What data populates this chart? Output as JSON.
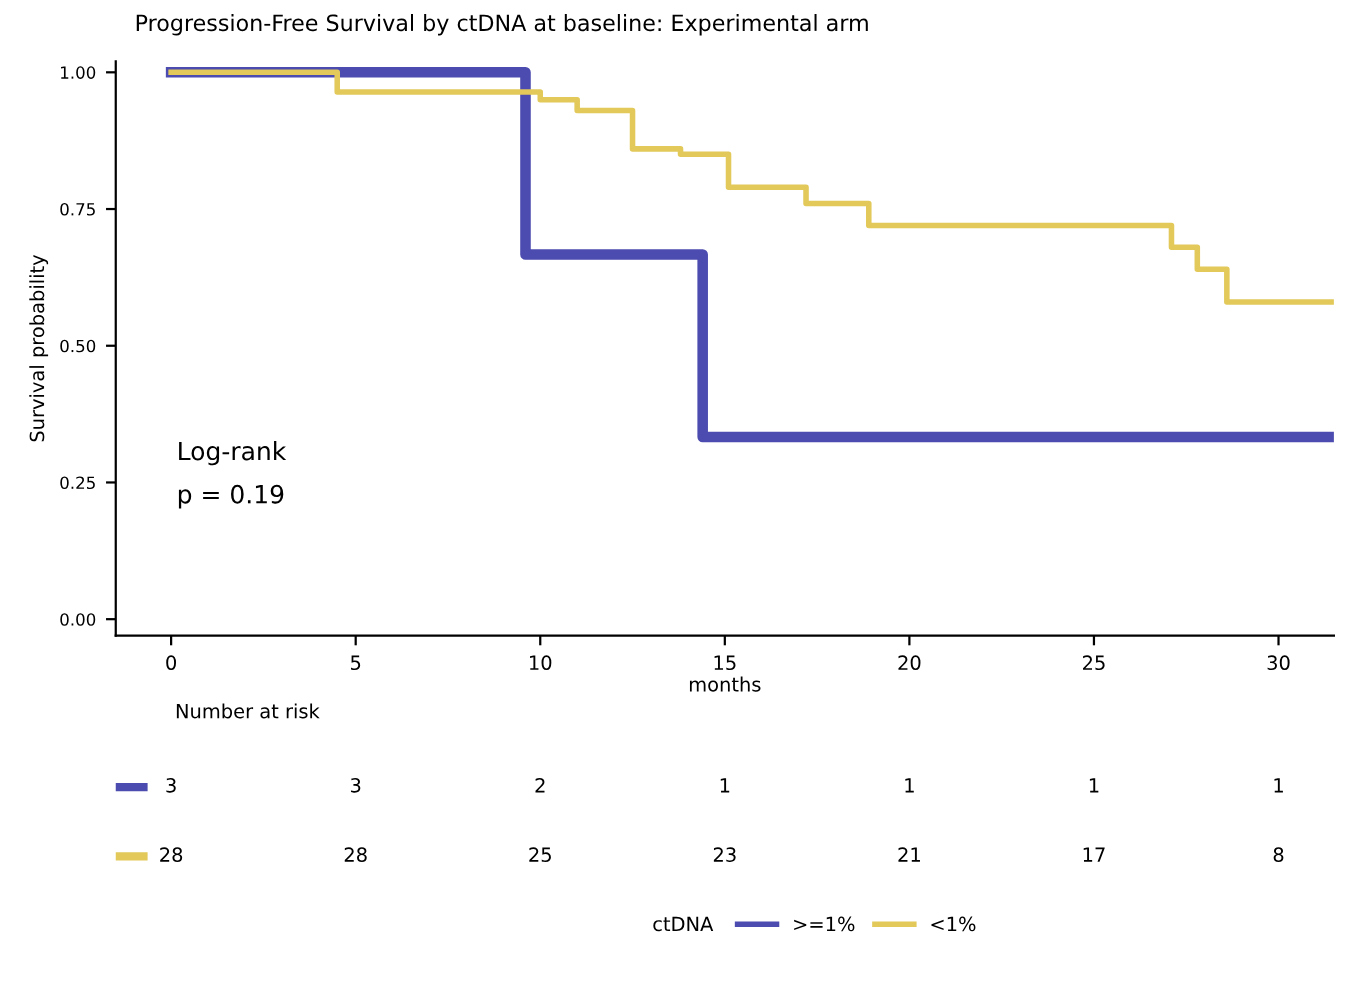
{
  "chart_data": {
    "type": "step",
    "title": "Progression-Free Survival by ctDNA at baseline: Experimental arm",
    "xlabel": "months",
    "ylabel": "Survival probability",
    "legend_title": "ctDNA",
    "series": [
      {
        "name": ">=1%",
        "color": "#4b4bb0",
        "x": [
          0,
          9.6,
          14.4,
          31.5
        ],
        "values": [
          1.0,
          0.667,
          0.333,
          0.333
        ]
      },
      {
        "name": "<1%",
        "color": "#e2c95a",
        "x": [
          0,
          4.5,
          10,
          11,
          12.5,
          13.8,
          15.1,
          17.2,
          18.9,
          27.1,
          27.8,
          28.6,
          31.5
        ],
        "values": [
          1.0,
          0.964,
          0.95,
          0.93,
          0.86,
          0.85,
          0.79,
          0.76,
          0.72,
          0.68,
          0.64,
          0.58,
          0.58
        ]
      }
    ],
    "annotations": [
      "Log-rank\np = 0.19",
      "Number at risk",
      "3",
      "3",
      "2",
      "1",
      "1",
      "1",
      "1",
      "28",
      "28",
      "25",
      "23",
      "21",
      "17",
      "8"
    ],
    "xlim": [
      -1.5,
      31.5
    ],
    "xticks": [
      0,
      5,
      10,
      15,
      20,
      25,
      30
    ],
    "ylim": [
      -0.03,
      1.02
    ],
    "yticks": [
      {
        "value": 0,
        "label": "0.00"
      },
      {
        "value": 0.25,
        "label": "0.25"
      },
      {
        "value": 0.5,
        "label": "0.50"
      },
      {
        "value": 0.75,
        "label": "0.75"
      },
      {
        "value": 1,
        "label": "1.00"
      }
    ],
    "grid": false,
    "legend": "bottom",
    "line_style": "solid"
  }
}
